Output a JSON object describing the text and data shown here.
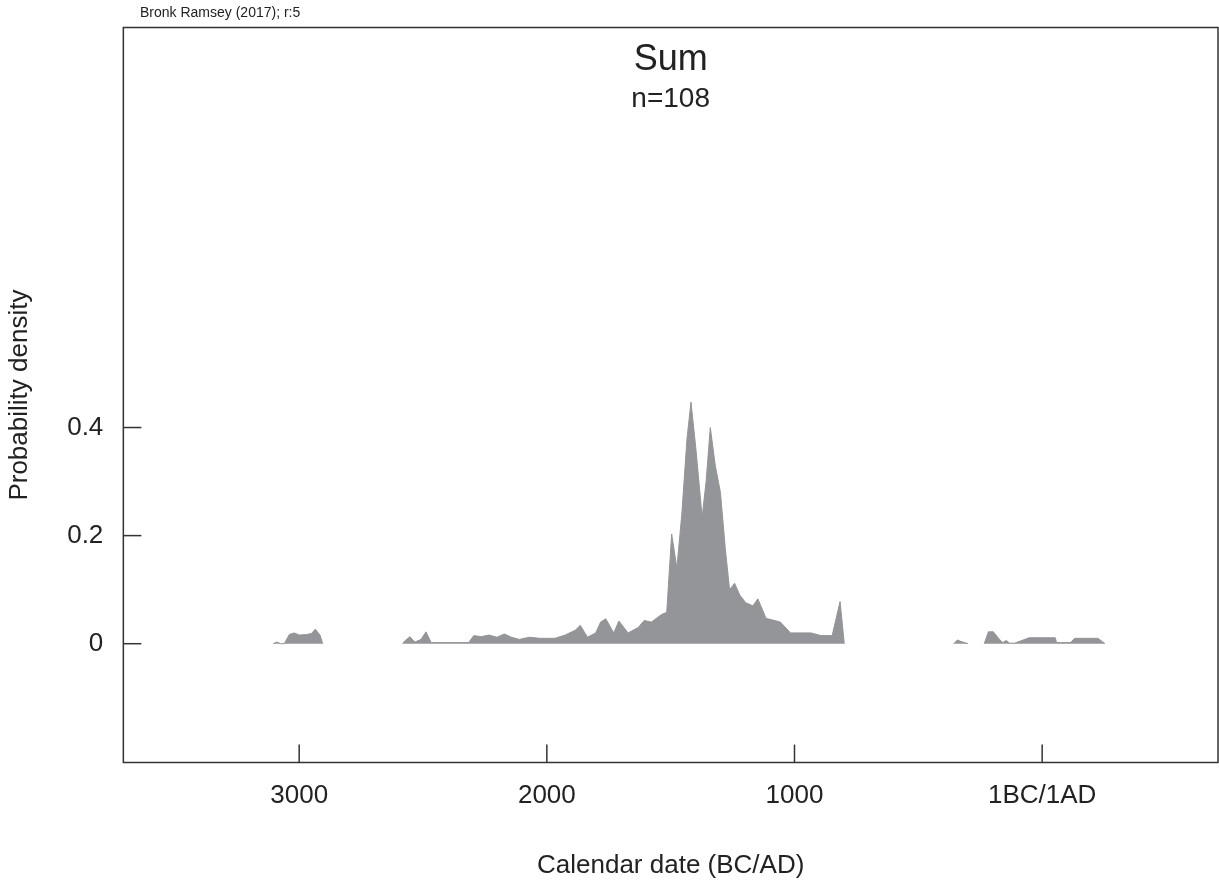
{
  "chart_data": {
    "type": "area",
    "title": "Sum",
    "subtitle": "n=108",
    "xlabel": "Calendar date (BC/AD)",
    "ylabel": "Probability density",
    "annotations": [
      "Bronk Ramsey (2017); r:5"
    ],
    "xlim": [
      -3710,
      710
    ],
    "ylim": [
      -0.22,
      1.14
    ],
    "xticks": [
      {
        "value": -3000,
        "label": "3000"
      },
      {
        "value": -2000,
        "label": "2000"
      },
      {
        "value": -1000,
        "label": "1000"
      },
      {
        "value": 0,
        "label": "1BC/1AD"
      }
    ],
    "yticks": [
      0,
      0.2,
      0.4
    ],
    "series": [
      {
        "color": "#939598",
        "x": [
          -3105,
          -3090,
          -3075,
          -3060,
          -3040,
          -3020,
          -3000,
          -2970,
          -2950,
          -2935,
          -2915,
          -2905,
          -2750,
          -2582,
          -2574,
          -2553,
          -2533,
          -2508,
          -2488,
          -2467,
          -2316,
          -2295,
          -2266,
          -2234,
          -2201,
          -2172,
          -2143,
          -2111,
          -2070,
          -2029,
          -1967,
          -1926,
          -1885,
          -1865,
          -1836,
          -1803,
          -1783,
          -1762,
          -1730,
          -1709,
          -1672,
          -1631,
          -1607,
          -1578,
          -1537,
          -1516,
          -1496,
          -1475,
          -1455,
          -1434,
          -1418,
          -1398,
          -1373,
          -1357,
          -1340,
          -1320,
          -1299,
          -1279,
          -1262,
          -1242,
          -1221,
          -1197,
          -1168,
          -1148,
          -1115,
          -1057,
          -1016,
          -934,
          -893,
          -848,
          -816,
          -799,
          -600,
          -357,
          -342,
          -328,
          -299,
          -270,
          -234,
          -217,
          -197,
          -176,
          -160,
          -145,
          -131,
          -111,
          -53,
          -37,
          0,
          53,
          58,
          74,
          115,
          131,
          184,
          225,
          254
        ],
        "values": [
          0,
          0.003,
          0,
          0,
          0.017,
          0.02,
          0.016,
          0.017,
          0.019,
          0.027,
          0.015,
          0,
          null,
          0,
          0.005,
          0.013,
          0.003,
          0.008,
          0.022,
          0.002,
          0.002,
          0.015,
          0.013,
          0.016,
          0.012,
          0.018,
          0.012,
          0.008,
          0.012,
          0.01,
          0.01,
          0.016,
          0.025,
          0.034,
          0.012,
          0.02,
          0.04,
          0.046,
          0.02,
          0.042,
          0.02,
          0.03,
          0.043,
          0.04,
          0.054,
          0.058,
          0.203,
          0.14,
          0.24,
          0.38,
          0.447,
          0.36,
          0.234,
          0.3,
          0.4,
          0.33,
          0.28,
          0.174,
          0.1,
          0.112,
          0.09,
          0.076,
          0.07,
          0.083,
          0.047,
          0.04,
          0.02,
          0.02,
          0.015,
          0.015,
          0.078,
          0,
          null,
          0,
          0.007,
          0.004,
          0,
          null,
          0,
          0.022,
          0.022,
          0.01,
          0.002,
          0.006,
          0.001,
          0.001,
          0.011,
          0.011,
          0.011,
          0.011,
          0.002,
          0.002,
          0.002,
          0.01,
          0.01,
          0.01,
          0
        ]
      }
    ]
  }
}
